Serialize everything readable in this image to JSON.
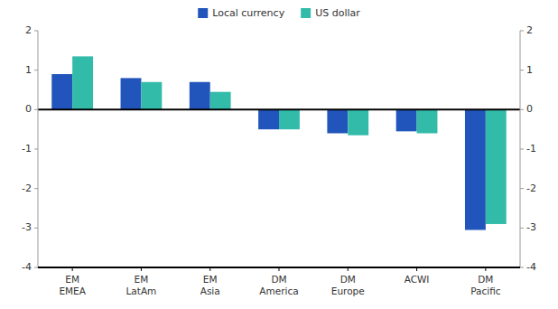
{
  "chart_data": {
    "type": "bar",
    "categories": [
      "EM\nEMEA",
      "EM\nLatAm",
      "EM\nAsia",
      "DM\nAmerica",
      "DM\nEurope",
      "ACWI",
      "DM\nPacific"
    ],
    "series": [
      {
        "name": "Local currency",
        "color": "#2255bb",
        "values": [
          0.9,
          0.8,
          0.7,
          -0.5,
          -0.6,
          -0.55,
          -3.05
        ]
      },
      {
        "name": "US dollar",
        "color": "#33bbaa",
        "values": [
          1.35,
          0.7,
          0.45,
          -0.5,
          -0.65,
          -0.6,
          -2.9
        ]
      }
    ],
    "ylim": [
      -4,
      2
    ],
    "yticks": [
      -4,
      -3,
      -2,
      -1,
      0,
      1,
      2
    ],
    "y2lim": [
      -4,
      2
    ],
    "y2ticks": [
      -4,
      -3,
      -2,
      -1,
      0,
      1,
      2
    ],
    "grid": false,
    "legend": "top"
  }
}
